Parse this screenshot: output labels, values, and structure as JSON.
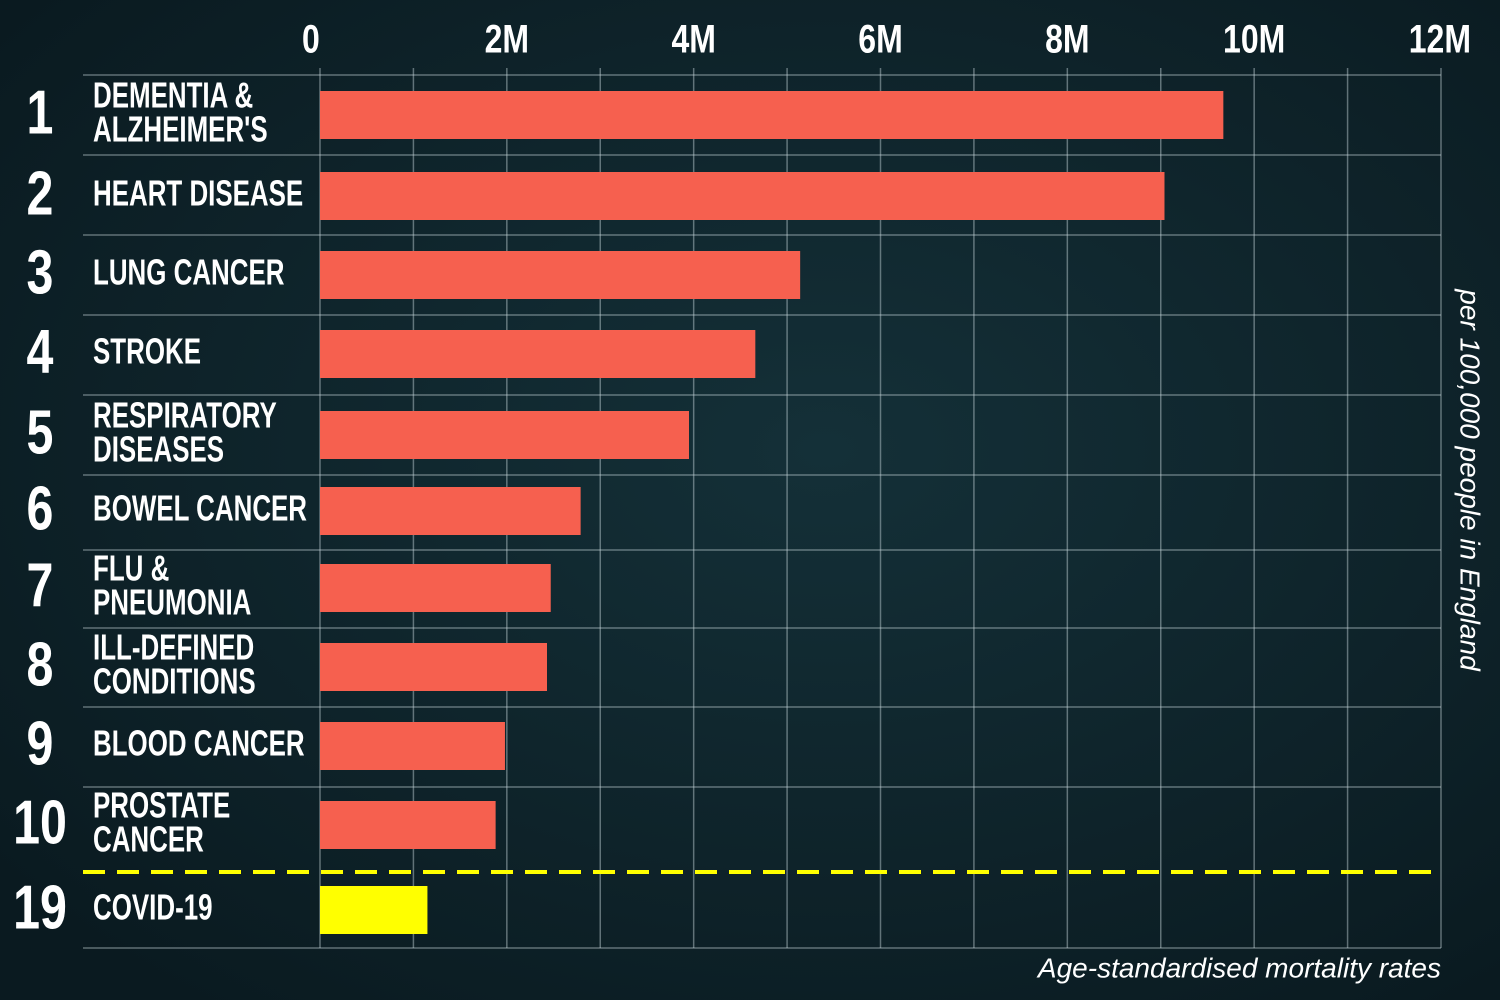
{
  "chart_data": {
    "type": "bar",
    "orientation": "horizontal",
    "ranks": [
      "1",
      "2",
      "3",
      "4",
      "5",
      "6",
      "7",
      "8",
      "9",
      "10",
      "19"
    ],
    "categories": [
      [
        "DEMENTIA &",
        "ALZHEIMER'S"
      ],
      [
        "HEART DISEASE"
      ],
      [
        "LUNG CANCER"
      ],
      [
        "STROKE"
      ],
      [
        "RESPIRATORY",
        "DISEASES"
      ],
      [
        "BOWEL CANCER"
      ],
      [
        "FLU &",
        "PNEUMONIA"
      ],
      [
        "ILL-DEFINED",
        "CONDITIONS"
      ],
      [
        "BLOOD CANCER"
      ],
      [
        "PROSTATE",
        "CANCER"
      ],
      [
        "COVID-19"
      ]
    ],
    "values": [
      9670000,
      9040000,
      5140000,
      4660000,
      3950000,
      2790000,
      2470000,
      2430000,
      1980000,
      1880000,
      1150000
    ],
    "colors": [
      "#f6604f",
      "#f6604f",
      "#f6604f",
      "#f6604f",
      "#f6604f",
      "#f6604f",
      "#f6604f",
      "#f6604f",
      "#f6604f",
      "#f6604f",
      "#ffff00"
    ],
    "xlim": [
      0,
      12000000
    ],
    "xticks": [
      {
        "value": 0,
        "label": "0"
      },
      {
        "value": 2000000,
        "label": "2M"
      },
      {
        "value": 4000000,
        "label": "4M"
      },
      {
        "value": 6000000,
        "label": "6M"
      },
      {
        "value": 8000000,
        "label": "8M"
      },
      {
        "value": 10000000,
        "label": "10M"
      },
      {
        "value": 12000000,
        "label": "12M"
      }
    ],
    "minor_xticks": [
      1000000,
      3000000,
      5000000,
      7000000,
      9000000,
      11000000
    ],
    "grid": true,
    "y_axis_label": "per 100,000 people in England",
    "footnote": "Age-standardised mortality rates"
  }
}
